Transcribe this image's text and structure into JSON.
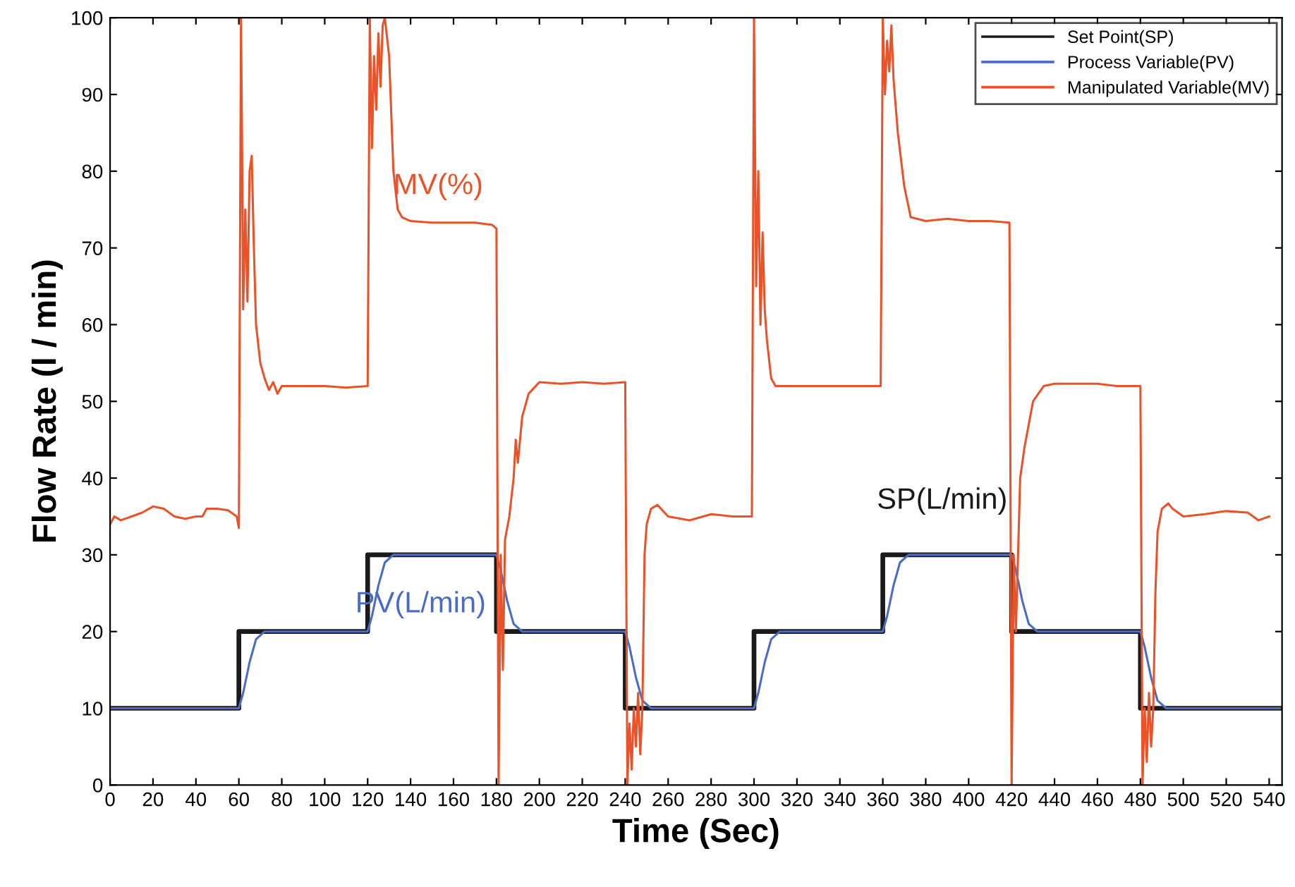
{
  "chart_data": {
    "type": "line",
    "xlabel": "Time (Sec)",
    "ylabel": "Flow Rate (l / min)",
    "xlim": [
      0,
      546
    ],
    "ylim": [
      0,
      100
    ],
    "xticks": [
      0,
      20,
      40,
      60,
      80,
      100,
      120,
      140,
      160,
      180,
      200,
      220,
      240,
      260,
      280,
      300,
      320,
      340,
      360,
      380,
      400,
      420,
      440,
      460,
      480,
      500,
      520,
      540
    ],
    "yticks": [
      0,
      10,
      20,
      30,
      40,
      50,
      60,
      70,
      80,
      90,
      100
    ],
    "grid": false,
    "legend": "top right",
    "line_style": "solid",
    "series": [
      {
        "name": "Set Point(SP)",
        "color": "#1a1a1a",
        "x": [
          0,
          60,
          60,
          120,
          120,
          180,
          180,
          240,
          240,
          300,
          300,
          360,
          360,
          420,
          420,
          480,
          480,
          545
        ],
        "values": [
          10,
          10,
          20,
          20,
          30,
          30,
          20,
          20,
          10,
          10,
          20,
          20,
          30,
          30,
          20,
          20,
          10,
          10
        ]
      },
      {
        "name": "Process Variable(PV)",
        "color": "#4a6cc4",
        "x": [
          0,
          60,
          62,
          65,
          68,
          72,
          120,
          122,
          125,
          128,
          132,
          180,
          182,
          185,
          188,
          192,
          240,
          242,
          245,
          248,
          252,
          300,
          302,
          305,
          308,
          312,
          360,
          362,
          365,
          368,
          372,
          420,
          422,
          425,
          428,
          432,
          480,
          482,
          485,
          488,
          492,
          545
        ],
        "values": [
          10,
          10,
          12,
          16,
          19,
          20,
          20,
          22,
          26,
          29,
          30,
          30,
          28,
          24,
          21,
          20,
          20,
          18,
          14,
          11,
          10,
          10,
          12,
          16,
          19,
          20,
          20,
          22,
          26,
          29,
          30,
          30,
          28,
          24,
          21,
          20,
          20,
          18,
          14,
          11,
          10,
          10
        ]
      },
      {
        "name": "Manipulated Variable(MV)",
        "color": "#e8532a",
        "x": [
          0,
          2,
          5,
          10,
          15,
          20,
          25,
          30,
          35,
          40,
          43,
          45,
          50,
          55,
          59,
          60,
          61,
          61.5,
          62,
          63,
          64,
          65,
          66,
          67,
          68,
          70,
          72,
          74,
          76,
          78,
          80,
          90,
          100,
          110,
          120,
          121,
          122,
          123,
          124,
          125,
          126,
          127,
          128,
          130,
          132,
          134,
          136,
          140,
          150,
          160,
          170,
          178,
          180,
          181,
          182,
          183,
          184,
          186,
          188,
          189,
          190,
          192,
          195,
          200,
          210,
          220,
          230,
          240,
          241,
          242,
          243,
          244,
          245,
          246,
          247,
          248,
          249,
          250,
          252,
          255,
          260,
          270,
          280,
          290,
          299,
          300,
          301,
          302,
          303,
          304,
          305,
          306,
          308,
          310,
          320,
          330,
          340,
          359,
          360,
          361,
          362,
          363,
          364,
          365,
          367,
          370,
          373,
          380,
          390,
          400,
          410,
          419,
          420,
          421,
          422,
          424,
          426,
          428,
          430,
          435,
          440,
          450,
          460,
          469,
          480,
          481,
          482,
          483,
          484,
          485,
          486,
          487,
          488,
          490,
          493,
          495,
          500,
          510,
          520,
          530,
          535,
          540
        ],
        "values": [
          34,
          35,
          34.5,
          35,
          35.5,
          36.3,
          36,
          35,
          34.7,
          35,
          35,
          36,
          36,
          35.8,
          35,
          33.5,
          100,
          83,
          62,
          75,
          63,
          80,
          82,
          70,
          60,
          55,
          53,
          51.5,
          52.5,
          51,
          52,
          52,
          52,
          51.8,
          52,
          100,
          83,
          95,
          88,
          98,
          91,
          99,
          100,
          95,
          80,
          75,
          74,
          73.5,
          73.3,
          73.3,
          73.3,
          73,
          72.5,
          0,
          30,
          15,
          32,
          35,
          40,
          45,
          42,
          48,
          51,
          52.5,
          52.3,
          52.5,
          52.3,
          52.5,
          0,
          8,
          2,
          10,
          5,
          12,
          4,
          10,
          30,
          34,
          36,
          36.5,
          35,
          34.5,
          35.3,
          35,
          35,
          100,
          65,
          80,
          60,
          72,
          62,
          58,
          53,
          52,
          52,
          52,
          52,
          52,
          100,
          90,
          97,
          93,
          99,
          92,
          85,
          78,
          74,
          73.5,
          73.8,
          73.5,
          73.5,
          73.3,
          0,
          30,
          20,
          40,
          44,
          47,
          50,
          52,
          52.3,
          52.3,
          52.3,
          52,
          52,
          0,
          10,
          3,
          12,
          5,
          10,
          25,
          33,
          36,
          36.7,
          36,
          35,
          35.3,
          35.7,
          35.5,
          34.5,
          35
        ]
      }
    ],
    "annotations": [
      "SP(L/min)",
      "PV(L/min)",
      "MV(%)"
    ]
  }
}
